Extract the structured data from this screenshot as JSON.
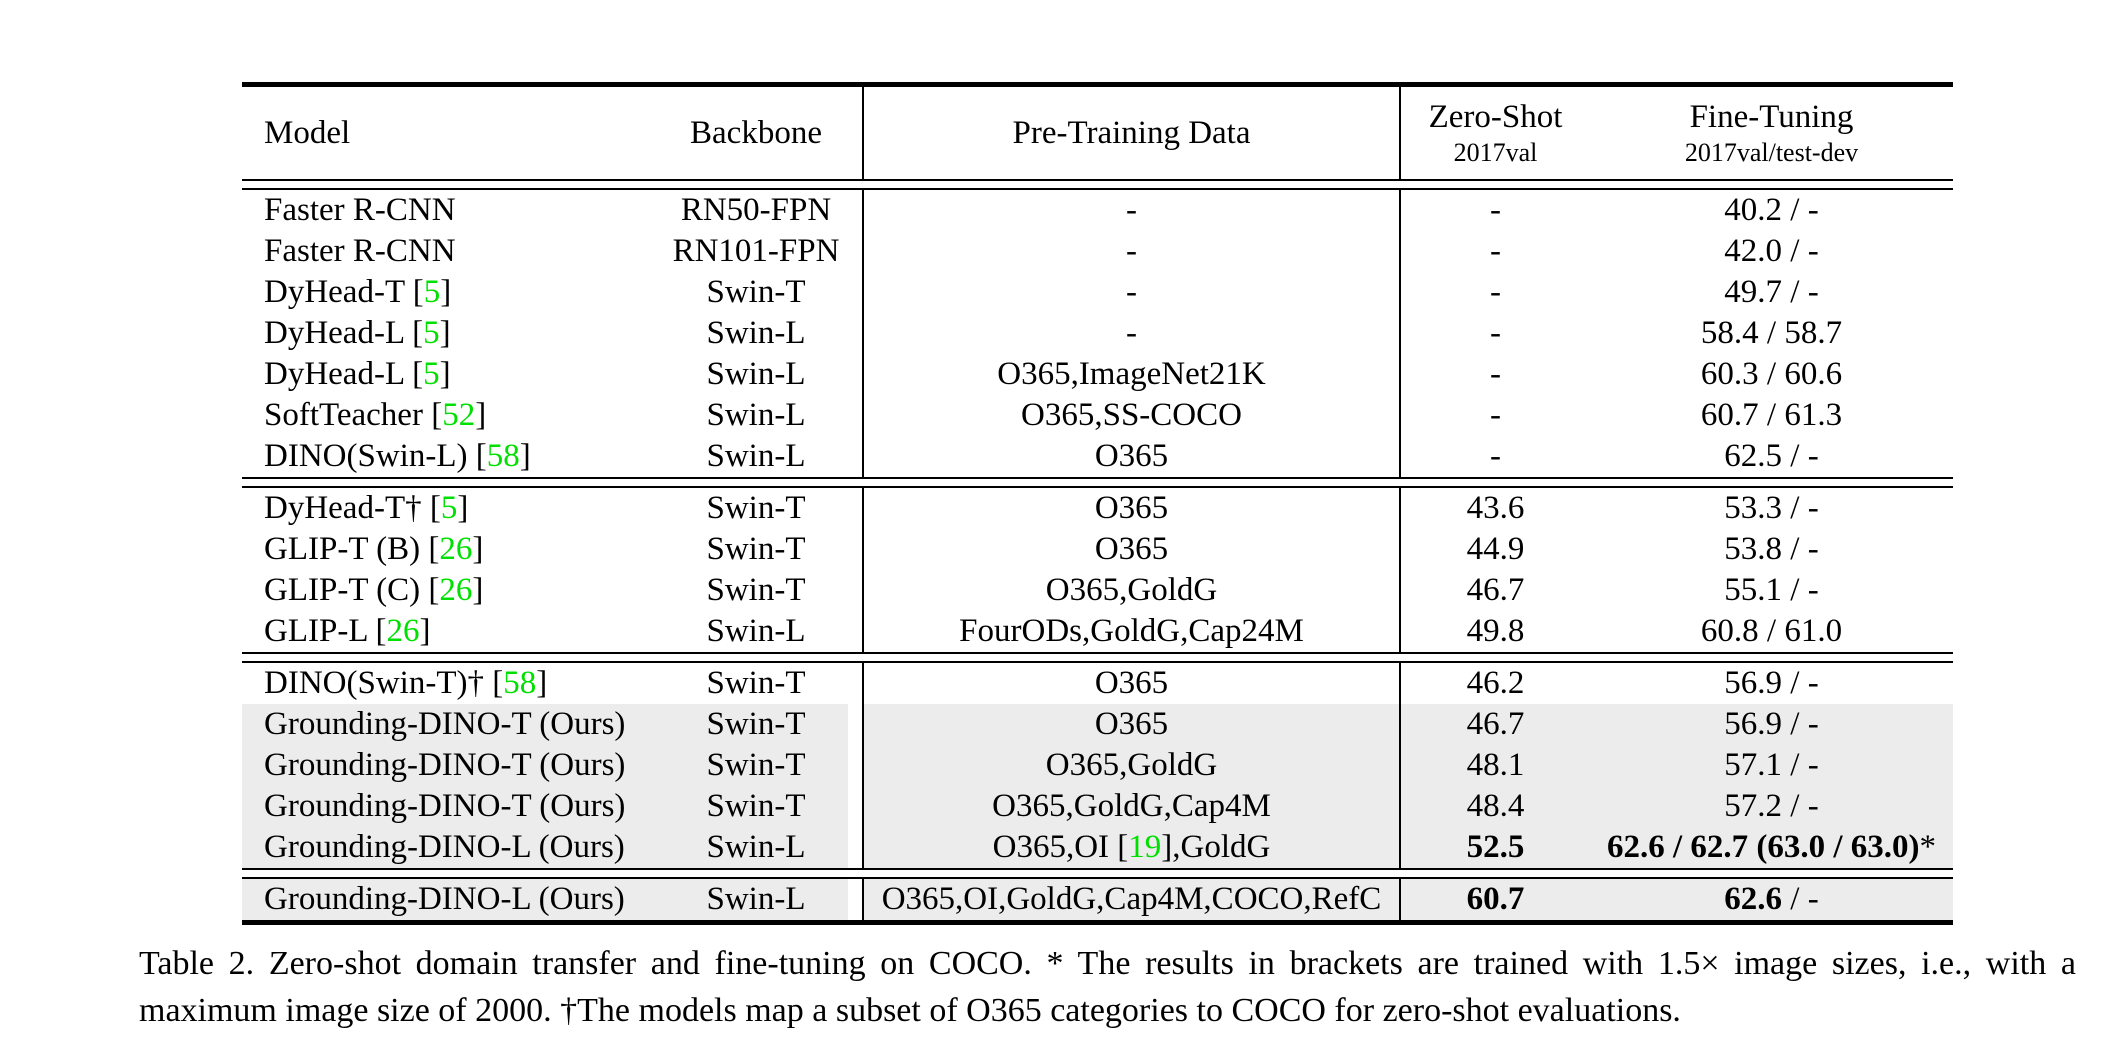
{
  "colors": {
    "citation_green": "#00e000",
    "row_highlight": "#ececec",
    "text": "#000000",
    "background": "#ffffff"
  },
  "table": {
    "header": {
      "model": "Model",
      "backbone": "Backbone",
      "pretrain": "Pre-Training Data",
      "zero_shot_line1": "Zero-Shot",
      "zero_shot_line2": "2017val",
      "fine_tuning_line1": "Fine-Tuning",
      "fine_tuning_line2": "2017val/test-dev"
    },
    "sections": [
      {
        "rows": [
          {
            "model": "Faster R-CNN",
            "backbone": "RN50-FPN",
            "pretrain": "-",
            "zero_shot": "-",
            "fine_tuning": "40.2 / -",
            "highlight": false,
            "zs_bold": false,
            "ft_bold": false,
            "ft_suffix": ""
          },
          {
            "model": "Faster R-CNN",
            "backbone": "RN101-FPN",
            "pretrain": "-",
            "zero_shot": "-",
            "fine_tuning": "42.0 / -",
            "highlight": false,
            "zs_bold": false,
            "ft_bold": false,
            "ft_suffix": ""
          },
          {
            "model": "DyHead-T [5]",
            "backbone": "Swin-T",
            "pretrain": "-",
            "zero_shot": "-",
            "fine_tuning": "49.7 / -",
            "highlight": false,
            "zs_bold": false,
            "ft_bold": false,
            "ft_suffix": ""
          },
          {
            "model": "DyHead-L [5]",
            "backbone": "Swin-L",
            "pretrain": "-",
            "zero_shot": "-",
            "fine_tuning": "58.4 / 58.7",
            "highlight": false,
            "zs_bold": false,
            "ft_bold": false,
            "ft_suffix": ""
          },
          {
            "model": "DyHead-L [5]",
            "backbone": "Swin-L",
            "pretrain": "O365,ImageNet21K",
            "zero_shot": "-",
            "fine_tuning": "60.3 / 60.6",
            "highlight": false,
            "zs_bold": false,
            "ft_bold": false,
            "ft_suffix": ""
          },
          {
            "model": "SoftTeacher [52]",
            "backbone": "Swin-L",
            "pretrain": "O365,SS-COCO",
            "zero_shot": "-",
            "fine_tuning": "60.7 / 61.3",
            "highlight": false,
            "zs_bold": false,
            "ft_bold": false,
            "ft_suffix": ""
          },
          {
            "model": "DINO(Swin-L) [58]",
            "backbone": "Swin-L",
            "pretrain": "O365",
            "zero_shot": "-",
            "fine_tuning": "62.5 / -",
            "highlight": false,
            "zs_bold": false,
            "ft_bold": false,
            "ft_suffix": ""
          }
        ]
      },
      {
        "rows": [
          {
            "model": "DyHead-T† [5]",
            "backbone": "Swin-T",
            "pretrain": "O365",
            "zero_shot": "43.6",
            "fine_tuning": "53.3 / -",
            "highlight": false,
            "zs_bold": false,
            "ft_bold": false,
            "ft_suffix": ""
          },
          {
            "model": "GLIP-T (B) [26]",
            "backbone": "Swin-T",
            "pretrain": "O365",
            "zero_shot": "44.9",
            "fine_tuning": "53.8 / -",
            "highlight": false,
            "zs_bold": false,
            "ft_bold": false,
            "ft_suffix": ""
          },
          {
            "model": "GLIP-T (C) [26]",
            "backbone": "Swin-T",
            "pretrain": "O365,GoldG",
            "zero_shot": "46.7",
            "fine_tuning": "55.1 / -",
            "highlight": false,
            "zs_bold": false,
            "ft_bold": false,
            "ft_suffix": ""
          },
          {
            "model": "GLIP-L [26]",
            "backbone": "Swin-L",
            "pretrain": "FourODs,GoldG,Cap24M",
            "zero_shot": "49.8",
            "fine_tuning": "60.8 / 61.0",
            "highlight": false,
            "zs_bold": false,
            "ft_bold": false,
            "ft_suffix": ""
          }
        ]
      },
      {
        "rows": [
          {
            "model": "DINO(Swin-T)† [58]",
            "backbone": "Swin-T",
            "pretrain": "O365",
            "zero_shot": "46.2",
            "fine_tuning": "56.9 / -",
            "highlight": false,
            "zs_bold": false,
            "ft_bold": false,
            "ft_suffix": ""
          },
          {
            "model": "Grounding-DINO-T (Ours)",
            "backbone": "Swin-T",
            "pretrain": "O365",
            "zero_shot": "46.7",
            "fine_tuning": "56.9 / -",
            "highlight": true,
            "zs_bold": false,
            "ft_bold": false,
            "ft_suffix": ""
          },
          {
            "model": "Grounding-DINO-T (Ours)",
            "backbone": "Swin-T",
            "pretrain": "O365,GoldG",
            "zero_shot": "48.1",
            "fine_tuning": "57.1 / -",
            "highlight": true,
            "zs_bold": false,
            "ft_bold": false,
            "ft_suffix": ""
          },
          {
            "model": "Grounding-DINO-T (Ours)",
            "backbone": "Swin-T",
            "pretrain": "O365,GoldG,Cap4M",
            "zero_shot": "48.4",
            "fine_tuning": "57.2 / -",
            "highlight": true,
            "zs_bold": false,
            "ft_bold": false,
            "ft_suffix": ""
          },
          {
            "model": "Grounding-DINO-L (Ours)",
            "backbone": "Swin-L",
            "pretrain": "O365,OI [19],GoldG",
            "zero_shot": "52.5",
            "fine_tuning": "62.6 / 62.7 (63.0 / 63.0)",
            "highlight": true,
            "zs_bold": true,
            "ft_bold": true,
            "ft_suffix": "*"
          }
        ]
      },
      {
        "rows": [
          {
            "model": "Grounding-DINO-L (Ours)",
            "backbone": "Swin-L",
            "pretrain": "O365,OI,GoldG,Cap4M,COCO,RefC",
            "zero_shot": "60.7",
            "fine_tuning": "62.6",
            "highlight": true,
            "zs_bold": true,
            "ft_bold": true,
            "ft_suffix": " / -"
          }
        ]
      }
    ]
  },
  "caption": {
    "line1": "Table 2.  Zero-shot domain transfer and fine-tuning on COCO. * The results in brackets are trained with 1.5× image sizes, i.e., with a",
    "line2": "maximum image size of 2000. †The models map a subset of O365 categories to COCO for zero-shot evaluations."
  }
}
